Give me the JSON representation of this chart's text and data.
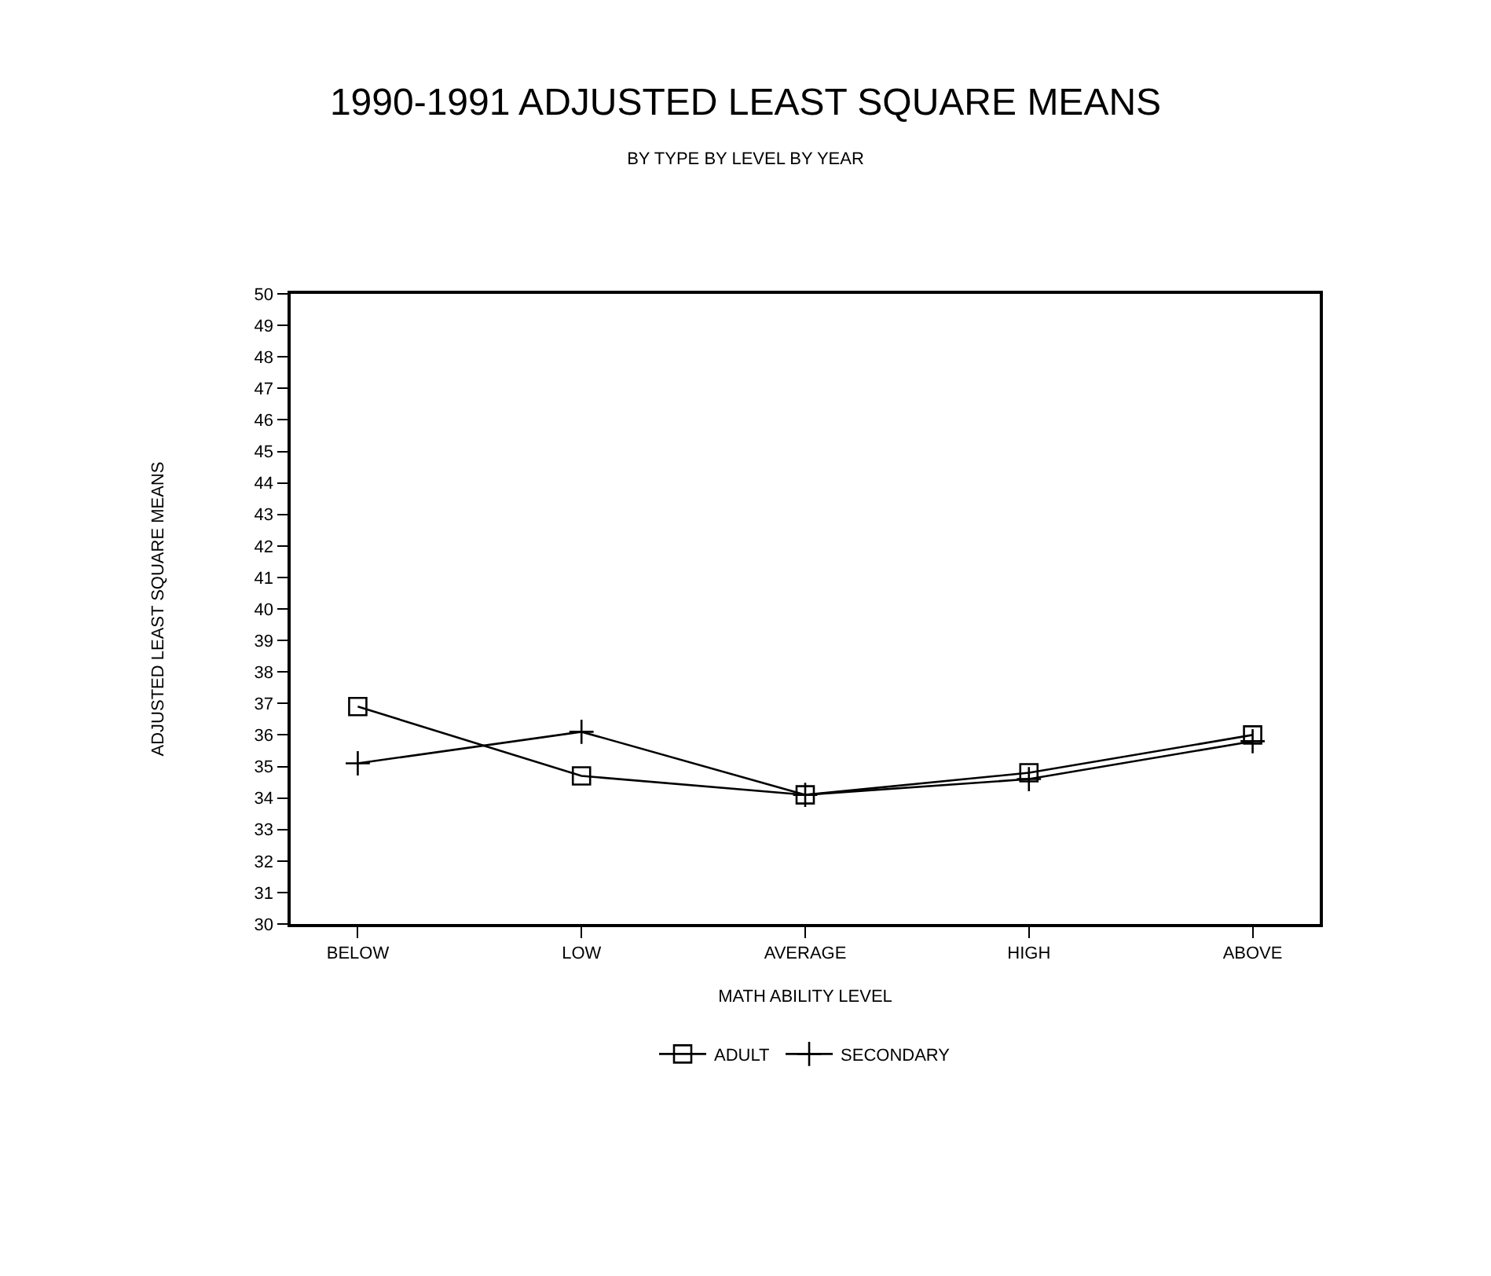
{
  "chart_data": {
    "type": "line",
    "title": "1990-1991 ADJUSTED LEAST SQUARE MEANS",
    "subtitle": "BY TYPE BY LEVEL BY YEAR",
    "xlabel": "MATH ABILITY LEVEL",
    "ylabel": "ADJUSTED LEAST SQUARE MEANS",
    "categories": [
      "BELOW",
      "LOW",
      "AVERAGE",
      "HIGH",
      "ABOVE"
    ],
    "series": [
      {
        "name": "ADULT",
        "color": "#000000",
        "marker": "square",
        "values": [
          36.9,
          34.7,
          34.1,
          34.8,
          36.0
        ]
      },
      {
        "name": "SECONDARY",
        "color": "#000000",
        "marker": "cross",
        "values": [
          35.1,
          36.1,
          34.1,
          34.6,
          35.8
        ]
      }
    ],
    "ylim": [
      30,
      50
    ],
    "yticks": [
      30,
      31,
      32,
      33,
      34,
      35,
      36,
      37,
      38,
      39,
      40,
      41,
      42,
      43,
      44,
      45,
      46,
      47,
      48,
      49,
      50
    ],
    "legend": "bottom",
    "line_style": "solid"
  }
}
